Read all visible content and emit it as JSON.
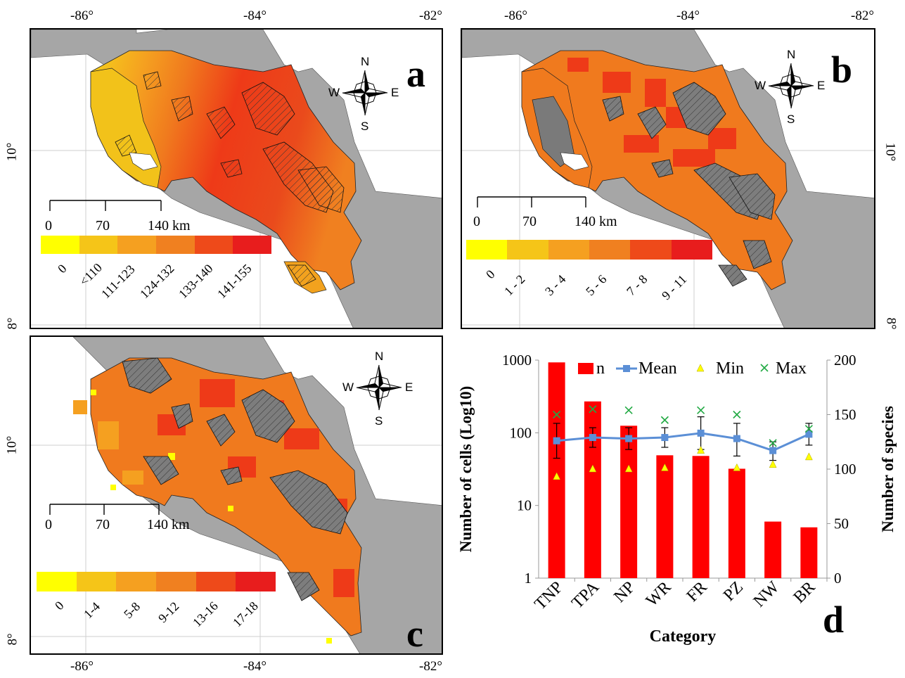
{
  "lon_ticks": [
    "-86°",
    "-84°",
    "-82°"
  ],
  "lat_ticks": [
    "10°",
    "8°"
  ],
  "compass": {
    "n": "N",
    "s": "S",
    "e": "E",
    "w": "W"
  },
  "scale_bar": {
    "zero": "0",
    "mid": "70",
    "end": "140 km"
  },
  "panels": {
    "a": {
      "label": "a",
      "legend_colors": [
        "#ffff00",
        "#f5c518",
        "#f5a020",
        "#f08020",
        "#ee4a1a",
        "#e81d1d"
      ],
      "legend_labels": [
        "0",
        "<110",
        "111-123",
        "124-132",
        "133-140",
        "141-155"
      ]
    },
    "b": {
      "label": "b",
      "legend_colors": [
        "#ffff00",
        "#f5c518",
        "#f5a020",
        "#f08020",
        "#ee4a1a",
        "#e81d1d"
      ],
      "legend_labels": [
        "0",
        "1 - 2",
        "3 - 4",
        "5 - 6",
        "7 - 8",
        "9 - 11"
      ]
    },
    "c": {
      "label": "c",
      "legend_colors": [
        "#ffff00",
        "#f5c518",
        "#f5a020",
        "#f08020",
        "#ee4a1a",
        "#e81d1d"
      ],
      "legend_labels": [
        "0",
        "1-4",
        "5-8",
        "9-12",
        "13-16",
        "17-18"
      ]
    },
    "d": {
      "label": "d"
    }
  },
  "chart_data": {
    "type": "bar",
    "categories": [
      "TNP",
      "TPA",
      "NP",
      "WR",
      "FR",
      "PZ",
      "NW",
      "BR"
    ],
    "xlabel": "Category",
    "ylabel_left": "Number of cells (Log10)",
    "ylabel_right": "Number of species",
    "y_left_scale": "log",
    "y_left_ticks": [
      "1",
      "10",
      "100",
      "1000"
    ],
    "y_right_ticks": [
      "0",
      "50",
      "100",
      "150",
      "200"
    ],
    "y_right_lim": [
      0,
      200
    ],
    "series": [
      {
        "name": "n",
        "type": "bar",
        "axis": "left",
        "color": "#ff0000",
        "values": [
          930,
          270,
          125,
          49,
          48,
          32,
          6,
          5
        ]
      },
      {
        "name": "Mean",
        "type": "line",
        "axis": "right",
        "color": "#5b8fd6",
        "values": [
          126,
          129,
          128,
          129,
          133,
          128,
          117,
          132
        ]
      },
      {
        "name": "Min",
        "type": "scatter",
        "axis": "right",
        "color": "#ffff00",
        "values": [
          93,
          100,
          100,
          101,
          117,
          101,
          104,
          111
        ]
      },
      {
        "name": "Max",
        "type": "scatter",
        "axis": "right",
        "color": "#22aa44",
        "values": [
          150,
          155,
          154,
          145,
          154,
          150,
          124,
          137
        ]
      }
    ],
    "error_bars": [
      [
        110,
        142
      ],
      [
        120,
        138
      ],
      [
        118,
        138
      ],
      [
        120,
        138
      ],
      [
        118,
        148
      ],
      [
        112,
        142
      ],
      [
        108,
        125
      ],
      [
        122,
        142
      ]
    ],
    "legend_placement": "top"
  }
}
